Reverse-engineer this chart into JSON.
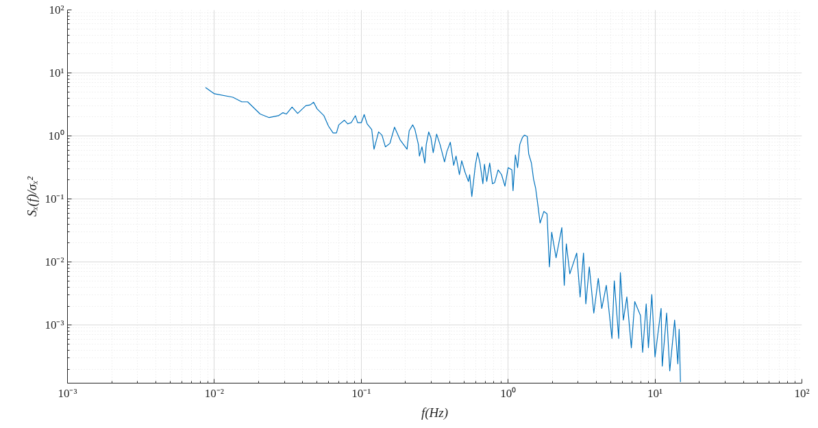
{
  "chart_data": {
    "type": "line",
    "xlabel": "f(Hz)",
    "ylabel": "Sₓ(f)/σₓ²",
    "log": "xy",
    "grid": true,
    "xlim": [
      0.001,
      100
    ],
    "ylim": [
      0.00012,
      100
    ],
    "xticks": [
      {
        "value": 0.001,
        "label": "10⁻³"
      },
      {
        "value": 0.01,
        "label": "10⁻²"
      },
      {
        "value": 0.1,
        "label": "10⁻¹"
      },
      {
        "value": 1,
        "label": "10⁰"
      },
      {
        "value": 10,
        "label": "10¹"
      },
      {
        "value": 100,
        "label": "10²"
      }
    ],
    "yticks": [
      {
        "value": 0.001,
        "label": "10⁻³"
      },
      {
        "value": 0.01,
        "label": "10⁻²"
      },
      {
        "value": 0.1,
        "label": "10⁻¹"
      },
      {
        "value": 1,
        "label": "10⁰"
      },
      {
        "value": 10,
        "label": "10¹"
      },
      {
        "value": 100,
        "label": "10²"
      }
    ],
    "series": [
      {
        "color": "#0072bd",
        "x": [
          0.0087,
          0.01,
          0.01336,
          0.01538,
          0.01686,
          0.0205,
          0.0236,
          0.0273,
          0.0293,
          0.0309,
          0.0338,
          0.0369,
          0.0419,
          0.045,
          0.0474,
          0.05,
          0.0557,
          0.0598,
          0.0643,
          0.0678,
          0.0703,
          0.0768,
          0.0809,
          0.0855,
          0.0912,
          0.0945,
          0.1002,
          0.1047,
          0.1097,
          0.1178,
          0.1222,
          0.1312,
          0.1384,
          0.146,
          0.1567,
          0.1685,
          0.184,
          0.205,
          0.212,
          0.224,
          0.232,
          0.245,
          0.249,
          0.259,
          0.271,
          0.277,
          0.288,
          0.298,
          0.309,
          0.326,
          0.344,
          0.369,
          0.383,
          0.404,
          0.426,
          0.442,
          0.466,
          0.483,
          0.509,
          0.537,
          0.547,
          0.566,
          0.598,
          0.62,
          0.643,
          0.673,
          0.69,
          0.715,
          0.749,
          0.782,
          0.809,
          0.855,
          0.902,
          0.951,
          1.0,
          1.06,
          1.08,
          1.12,
          1.16,
          1.2,
          1.25,
          1.29,
          1.35,
          1.38,
          1.44,
          1.49,
          1.54,
          1.6,
          1.65,
          1.75,
          1.84,
          1.91,
          1.98,
          2.12,
          2.32,
          2.41,
          2.49,
          2.63,
          2.93,
          3.09,
          3.26,
          3.38,
          3.57,
          3.83,
          4.11,
          4.34,
          4.66,
          5.09,
          5.28,
          5.66,
          5.81,
          6.09,
          6.43,
          6.9,
          7.28,
          7.96,
          8.24,
          8.71,
          9.02,
          9.51,
          10.0,
          11.0,
          11.2,
          12.0,
          12.6,
          13.6,
          14.3,
          14.6,
          14.9
        ],
        "values": [
          5.9,
          4.68,
          4.12,
          3.48,
          3.48,
          2.23,
          1.96,
          2.1,
          2.34,
          2.23,
          2.87,
          2.28,
          3.02,
          3.12,
          3.43,
          2.7,
          2.1,
          1.44,
          1.12,
          1.12,
          1.5,
          1.78,
          1.56,
          1.63,
          2.1,
          1.63,
          1.63,
          2.19,
          1.56,
          1.27,
          0.618,
          1.16,
          1.03,
          0.673,
          0.764,
          1.38,
          0.867,
          0.618,
          1.21,
          1.5,
          1.27,
          0.731,
          0.48,
          0.673,
          0.373,
          0.731,
          1.16,
          0.943,
          0.545,
          1.07,
          0.731,
          0.389,
          0.569,
          0.796,
          0.343,
          0.48,
          0.244,
          0.405,
          0.266,
          0.19,
          0.244,
          0.11,
          0.343,
          0.545,
          0.373,
          0.175,
          0.357,
          0.19,
          0.373,
          0.175,
          0.182,
          0.29,
          0.244,
          0.16,
          0.315,
          0.29,
          0.136,
          0.501,
          0.315,
          0.731,
          0.943,
          1.03,
          0.983,
          0.522,
          0.373,
          0.207,
          0.147,
          0.075,
          0.0416,
          0.0634,
          0.0583,
          0.00838,
          0.0297,
          0.0117,
          0.0352,
          0.00427,
          0.0195,
          0.0065,
          0.0139,
          0.0028,
          0.0139,
          0.00217,
          0.00838,
          0.00155,
          0.0055,
          0.00184,
          0.00427,
          0.000614,
          0.00505,
          0.000614,
          0.00679,
          0.0012,
          0.0028,
          0.000437,
          0.00236,
          0.00142,
          0.00037,
          0.00217,
          0.000437,
          0.00305,
          0.000313,
          0.00184,
          0.000223,
          0.00155,
          0.000188,
          0.0012,
          0.000243,
          0.00086,
          0.000125
        ]
      }
    ]
  }
}
